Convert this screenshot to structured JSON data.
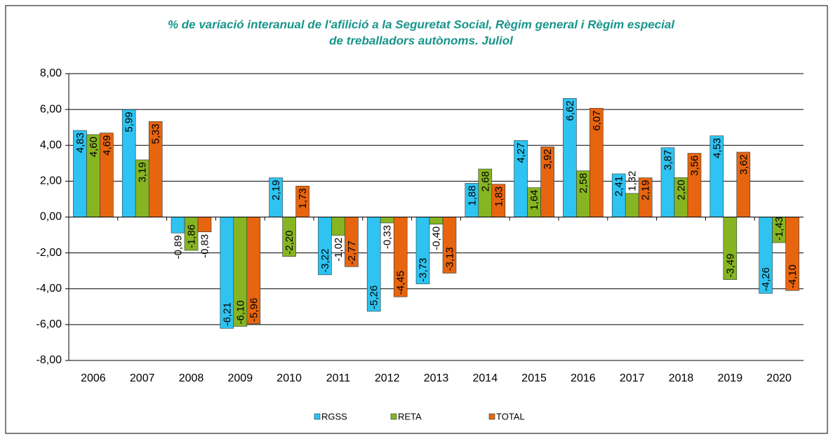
{
  "chart_data": {
    "type": "bar",
    "title": [
      "% de variació interanual de l'afilició a la Seguretat Social, Règim general i Règim especial",
      "de treballadors autònoms. Juliol"
    ],
    "categories": [
      "2006",
      "2007",
      "2008",
      "2009",
      "2010",
      "2011",
      "2012",
      "2013",
      "2014",
      "2015",
      "2016",
      "2017",
      "2018",
      "2019",
      "2020"
    ],
    "series": [
      {
        "name": "RGSS",
        "color": "#2ec3f0",
        "values": [
          4.83,
          5.99,
          -0.89,
          -6.21,
          2.19,
          -3.22,
          -5.26,
          -3.73,
          1.88,
          4.27,
          6.62,
          2.41,
          3.87,
          4.53,
          -4.26
        ],
        "value_labels": [
          "4,83",
          "5,99",
          "-0,89",
          "-6,21",
          "2,19",
          "-3,22",
          "-5,26",
          "-3,73",
          "1,88",
          "4,27",
          "6,62",
          "2,41",
          "3,87",
          "4,53",
          "-4,26"
        ]
      },
      {
        "name": "RETA",
        "color": "#86b521",
        "values": [
          4.6,
          3.19,
          -1.86,
          -6.1,
          -2.2,
          -1.02,
          -0.33,
          -0.4,
          2.68,
          1.64,
          2.58,
          1.32,
          2.2,
          -3.49,
          -1.43
        ],
        "value_labels": [
          "4,60",
          "3,19",
          "-1,86",
          "-6,10",
          "-2,20",
          "-1,02",
          "-0,33",
          "-0,40",
          "2,68",
          "1,64",
          "2,58",
          "1,32",
          "2,20",
          "-3,49",
          "-1,43"
        ]
      },
      {
        "name": "TOTAL",
        "color": "#e8650f",
        "values": [
          4.69,
          5.33,
          -0.83,
          -5.96,
          1.73,
          -2.77,
          -4.45,
          -3.13,
          1.83,
          3.92,
          6.07,
          2.19,
          3.56,
          3.62,
          -4.1
        ],
        "value_labels": [
          "4,69",
          "5,33",
          "-0,83",
          "-5,96",
          "1,73",
          "-2,77",
          "-4,45",
          "-3,13",
          "1,83",
          "3,92",
          "6,07",
          "2,19",
          "3,56",
          "3,62",
          "-4,10"
        ]
      }
    ],
    "ylim": [
      -8,
      8
    ],
    "yticks": [
      {
        "value": -8,
        "label": "-8,00"
      },
      {
        "value": -6,
        "label": "-6,00"
      },
      {
        "value": -4,
        "label": "-4,00"
      },
      {
        "value": -2,
        "label": "-2,00"
      },
      {
        "value": 0,
        "label": "0,00"
      },
      {
        "value": 2,
        "label": "2,00"
      },
      {
        "value": 4,
        "label": "4,00"
      },
      {
        "value": 6,
        "label": "6,00"
      },
      {
        "value": 8,
        "label": "8,00"
      }
    ],
    "grid": true,
    "legend": "bottom"
  }
}
